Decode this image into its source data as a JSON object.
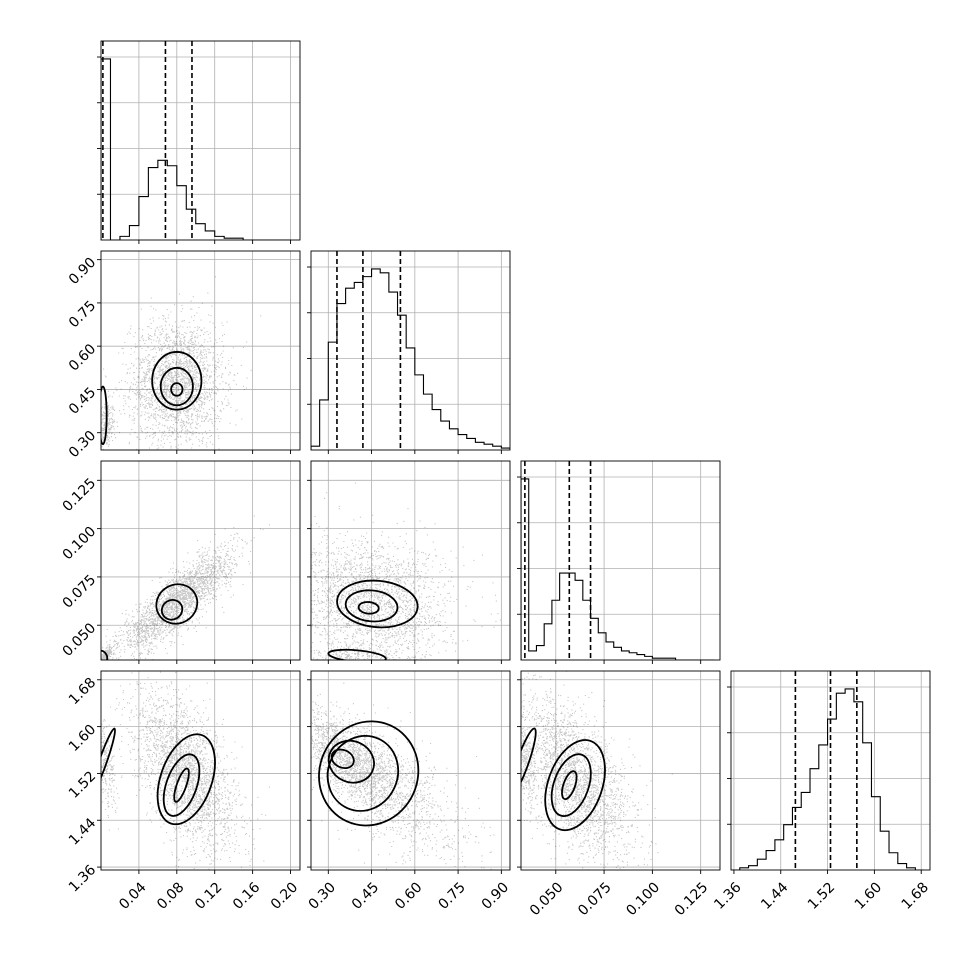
{
  "chart_data": {
    "type": "corner",
    "grid": true,
    "parameters": [
      {
        "range": [
          0.0,
          0.21
        ],
        "ticks": [
          0.04,
          0.08,
          0.12,
          0.16,
          0.2
        ],
        "tick_labels": [
          "0.04",
          "0.08",
          "0.12",
          "0.16",
          "0.20"
        ]
      },
      {
        "range": [
          0.24,
          0.93
        ],
        "ticks": [
          0.3,
          0.45,
          0.6,
          0.75,
          0.9
        ],
        "tick_labels": [
          "0.30",
          "0.45",
          "0.60",
          "0.75",
          "0.90"
        ]
      },
      {
        "range": [
          0.032,
          0.135
        ],
        "ticks": [
          0.05,
          0.075,
          0.1,
          0.125
        ],
        "tick_labels": [
          "0.050",
          "0.075",
          "0.100",
          "0.125"
        ]
      },
      {
        "range": [
          1.355,
          1.695
        ],
        "ticks": [
          1.36,
          1.44,
          1.52,
          1.6,
          1.68
        ],
        "tick_labels": [
          "1.36",
          "1.44",
          "1.52",
          "1.60",
          "1.68"
        ]
      }
    ],
    "histograms": [
      {
        "param": 0,
        "bins": [
          0.0,
          0.01,
          0.02,
          0.03,
          0.04,
          0.05,
          0.06,
          0.07,
          0.08,
          0.09,
          0.1,
          0.11,
          0.12,
          0.13,
          0.14,
          0.15,
          0.16,
          0.17,
          0.18,
          0.19,
          0.2
        ],
        "counts": [
          1.0,
          0.0,
          0.02,
          0.08,
          0.24,
          0.4,
          0.44,
          0.41,
          0.3,
          0.17,
          0.09,
          0.05,
          0.02,
          0.01,
          0.01,
          0.0,
          0.0,
          0.0,
          0.0,
          0.0
        ],
        "quantiles": [
          0.002,
          0.068,
          0.096
        ]
      },
      {
        "param": 1,
        "bins": [
          0.24,
          0.27,
          0.3,
          0.33,
          0.36,
          0.39,
          0.42,
          0.45,
          0.48,
          0.51,
          0.54,
          0.57,
          0.6,
          0.63,
          0.66,
          0.69,
          0.72,
          0.75,
          0.78,
          0.81,
          0.84,
          0.87,
          0.9,
          0.93
        ],
        "counts": [
          0.02,
          0.26,
          0.56,
          0.76,
          0.84,
          0.87,
          0.9,
          0.94,
          0.92,
          0.82,
          0.7,
          0.53,
          0.39,
          0.29,
          0.21,
          0.15,
          0.11,
          0.08,
          0.06,
          0.04,
          0.03,
          0.02,
          0.01
        ],
        "quantiles": [
          0.33,
          0.42,
          0.55
        ]
      },
      {
        "param": 2,
        "bins": [
          0.032,
          0.036,
          0.04,
          0.044,
          0.048,
          0.052,
          0.056,
          0.06,
          0.064,
          0.068,
          0.072,
          0.076,
          0.08,
          0.084,
          0.088,
          0.092,
          0.096,
          0.1,
          0.104,
          0.108,
          0.112,
          0.116,
          0.12,
          0.124,
          0.128,
          0.132
        ],
        "counts": [
          1.0,
          0.05,
          0.08,
          0.2,
          0.33,
          0.48,
          0.48,
          0.44,
          0.33,
          0.23,
          0.15,
          0.1,
          0.07,
          0.05,
          0.04,
          0.03,
          0.02,
          0.01,
          0.01,
          0.01,
          0.0,
          0.0,
          0.0,
          0.0,
          0.0
        ],
        "quantiles": [
          0.034,
          0.057,
          0.068
        ]
      },
      {
        "param": 3,
        "bins": [
          1.355,
          1.37,
          1.385,
          1.4,
          1.415,
          1.43,
          1.445,
          1.46,
          1.475,
          1.49,
          1.505,
          1.52,
          1.535,
          1.55,
          1.565,
          1.58,
          1.595,
          1.61,
          1.625,
          1.64,
          1.655,
          1.67,
          1.685
        ],
        "counts": [
          0.0,
          0.01,
          0.02,
          0.05,
          0.09,
          0.14,
          0.21,
          0.29,
          0.36,
          0.47,
          0.58,
          0.7,
          0.82,
          0.84,
          0.78,
          0.59,
          0.34,
          0.18,
          0.08,
          0.03,
          0.01,
          0.0
        ],
        "quantiles": [
          1.465,
          1.525,
          1.57
        ]
      }
    ],
    "scatter_panels": [
      {
        "x": 0,
        "y": 1,
        "blobs": [
          [
            0.004,
            0.33,
            0.004,
            0.03,
            0.1
          ],
          [
            0.08,
            0.47,
            0.018,
            0.08,
            0.9
          ]
        ],
        "rho": 0.0,
        "contours": [
          [
            0.002,
            0.36,
            0.004,
            0.1,
            "inner"
          ],
          [
            0.08,
            0.48,
            0.026,
            0.1
          ],
          [
            0.08,
            0.46,
            0.017,
            0.065
          ],
          [
            0.08,
            0.45,
            0.006,
            0.022
          ]
        ]
      },
      {
        "x": 0,
        "y": 2,
        "blobs": [
          [
            0.004,
            0.034,
            0.004,
            0.002,
            0.1
          ],
          [
            0.08,
            0.062,
            0.022,
            0.01,
            0.9
          ]
        ],
        "rho": 0.85,
        "contours": [
          [
            0.002,
            0.034,
            0.004,
            0.003,
            "inner"
          ],
          [
            0.08,
            0.061,
            0.022,
            0.01
          ],
          [
            0.075,
            0.058,
            0.011,
            0.005
          ]
        ]
      },
      {
        "x": 1,
        "y": 2,
        "blobs": [
          [
            0.37,
            0.034,
            0.07,
            0.002,
            0.1
          ],
          [
            0.45,
            0.062,
            0.1,
            0.012,
            0.9
          ]
        ],
        "rho": -0.15,
        "contours": [
          [
            0.4,
            0.034,
            0.1,
            0.003,
            "inner"
          ],
          [
            0.47,
            0.061,
            0.14,
            0.012
          ],
          [
            0.45,
            0.06,
            0.09,
            0.008
          ],
          [
            0.44,
            0.059,
            0.035,
            0.003
          ]
        ]
      },
      {
        "x": 0,
        "y": 3,
        "blobs": [
          [
            0.004,
            1.54,
            0.004,
            0.03,
            0.1
          ],
          [
            0.09,
            1.52,
            0.02,
            0.05,
            0.9
          ]
        ],
        "rho": -0.55,
        "contours": [
          [
            0.002,
            1.54,
            0.004,
            0.06,
            "inner"
          ],
          [
            0.09,
            1.51,
            0.027,
            0.08
          ],
          [
            0.085,
            1.5,
            0.016,
            0.055
          ],
          [
            0.085,
            1.5,
            0.005,
            0.03
          ]
        ]
      },
      {
        "x": 1,
        "y": 3,
        "blobs": [
          [
            0.38,
            1.54,
            0.07,
            0.03,
            0.5
          ],
          [
            0.47,
            1.5,
            0.12,
            0.05,
            0.5
          ]
        ],
        "rho": -0.7,
        "contours": [
          [
            0.44,
            1.52,
            0.17,
            0.09
          ],
          [
            0.42,
            1.52,
            0.12,
            0.065
          ],
          [
            0.38,
            1.54,
            0.08,
            0.035
          ],
          [
            0.35,
            1.545,
            0.04,
            0.015
          ]
        ]
      },
      {
        "x": 2,
        "y": 3,
        "blobs": [
          [
            0.034,
            1.54,
            0.002,
            0.03,
            0.1
          ],
          [
            0.06,
            1.51,
            0.011,
            0.05,
            0.9
          ]
        ],
        "rho": -0.55,
        "contours": [
          [
            0.033,
            1.54,
            0.003,
            0.06,
            "inner"
          ],
          [
            0.06,
            1.5,
            0.014,
            0.08
          ],
          [
            0.058,
            1.5,
            0.009,
            0.055
          ],
          [
            0.057,
            1.5,
            0.003,
            0.025
          ]
        ]
      }
    ]
  }
}
